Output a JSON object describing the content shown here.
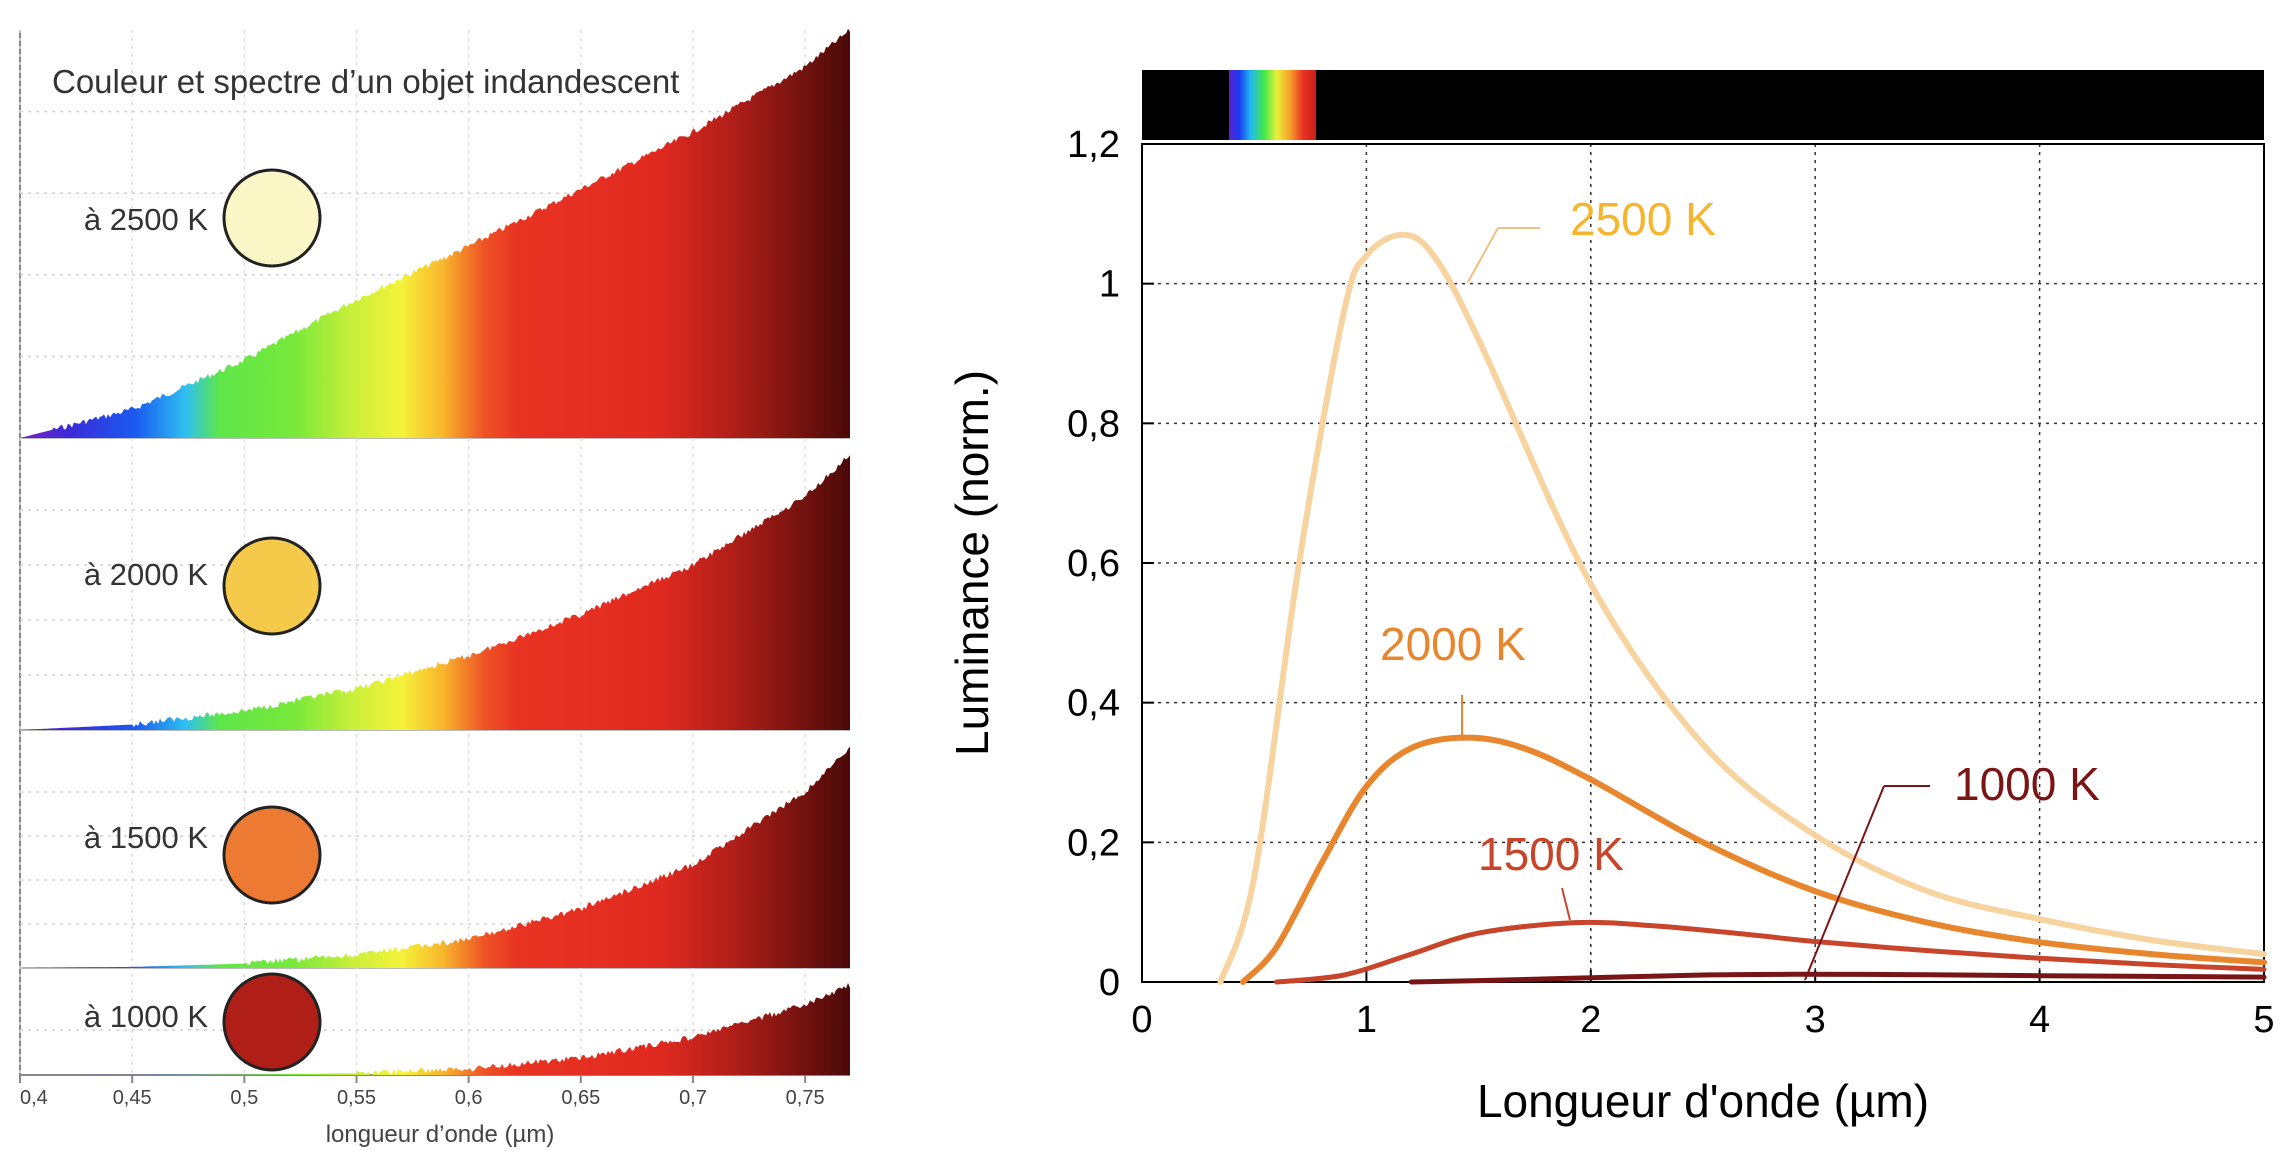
{
  "left_chart": {
    "title": "Couleur et spectre d’un objet indandescent",
    "xlabel": "longueur d’onde (µm)",
    "x_ticks": [
      "0,4",
      "0,45",
      "0,5",
      "0,55",
      "0,6",
      "0,65",
      "0,7",
      "0,75"
    ],
    "panels": [
      {
        "label": "à 2500 K",
        "color": "#fbf6c6"
      },
      {
        "label": "à 2000 K",
        "color": "#f5c94a"
      },
      {
        "label": "à 1500 K",
        "color": "#ec7a33"
      },
      {
        "label": "à 1000 K",
        "color": "#b01e18"
      }
    ]
  },
  "chart_data": [
    {
      "type": "area",
      "title": "Couleur et spectre d’un objet indandescent",
      "xlabel": "longueur d’onde (µm)",
      "ylabel": "",
      "xlim": [
        0.4,
        0.77
      ],
      "x_ticks": [
        0.4,
        0.45,
        0.5,
        0.55,
        0.6,
        0.65,
        0.7,
        0.75
      ],
      "series": [
        {
          "name": "à 2500 K",
          "x": [
            0.4,
            0.45,
            0.5,
            0.55,
            0.6,
            0.65,
            0.7,
            0.75,
            0.77
          ],
          "values": [
            0.0,
            0.07,
            0.19,
            0.34,
            0.47,
            0.61,
            0.75,
            0.91,
            1.0
          ]
        },
        {
          "name": "à 2000 K",
          "x": [
            0.4,
            0.45,
            0.5,
            0.55,
            0.6,
            0.65,
            0.7,
            0.75,
            0.77
          ],
          "values": [
            0.0,
            0.02,
            0.07,
            0.15,
            0.27,
            0.42,
            0.6,
            0.85,
            1.0
          ]
        },
        {
          "name": "à 1500 K",
          "x": [
            0.4,
            0.45,
            0.5,
            0.55,
            0.6,
            0.65,
            0.7,
            0.75,
            0.77
          ],
          "values": [
            0.0,
            0.005,
            0.02,
            0.06,
            0.13,
            0.27,
            0.47,
            0.8,
            1.0
          ]
        },
        {
          "name": "à 1000 K",
          "x": [
            0.4,
            0.45,
            0.5,
            0.55,
            0.6,
            0.65,
            0.7,
            0.75,
            0.77
          ],
          "values": [
            0.0,
            0.001,
            0.005,
            0.02,
            0.07,
            0.19,
            0.42,
            0.78,
            1.0
          ]
        }
      ]
    },
    {
      "type": "line",
      "title": "",
      "xlabel": "Longueur d'onde (µm)",
      "ylabel": "Luminance (norm.)",
      "xlim": [
        0,
        5
      ],
      "ylim": [
        0,
        1.2
      ],
      "x_ticks": [
        "0",
        "1",
        "2",
        "3",
        "4",
        "5"
      ],
      "y_ticks": [
        "0",
        "0,2",
        "0,4",
        "0,6",
        "0,8",
        "1",
        "1,2"
      ],
      "grid": true,
      "series": [
        {
          "name": "2500 K",
          "color": "#f7d49f",
          "x": [
            0.35,
            0.5,
            0.7,
            0.9,
            1.0,
            1.16,
            1.3,
            1.5,
            2.0,
            2.5,
            3.0,
            3.5,
            4.0,
            4.5,
            5.0
          ],
          "values": [
            0.0,
            0.15,
            0.6,
            0.96,
            1.04,
            1.07,
            1.04,
            0.92,
            0.57,
            0.34,
            0.21,
            0.13,
            0.09,
            0.06,
            0.04
          ]
        },
        {
          "name": "2000 K",
          "color": "#e8862e",
          "x": [
            0.45,
            0.6,
            0.8,
            1.0,
            1.2,
            1.45,
            1.7,
            2.0,
            2.5,
            3.0,
            3.5,
            4.0,
            4.5,
            5.0
          ],
          "values": [
            0.0,
            0.05,
            0.17,
            0.28,
            0.335,
            0.35,
            0.335,
            0.29,
            0.2,
            0.13,
            0.085,
            0.057,
            0.04,
            0.028
          ]
        },
        {
          "name": "1500 K",
          "color": "#c8452b",
          "x": [
            0.6,
            0.9,
            1.2,
            1.5,
            1.93,
            2.3,
            2.7,
            3.0,
            3.5,
            4.0,
            4.5,
            5.0
          ],
          "values": [
            0.0,
            0.01,
            0.04,
            0.07,
            0.085,
            0.08,
            0.068,
            0.058,
            0.045,
            0.034,
            0.025,
            0.018
          ]
        },
        {
          "name": "1000 K",
          "color": "#7a1515",
          "x": [
            1.2,
            1.5,
            2.0,
            2.5,
            2.9,
            3.5,
            4.0,
            4.5,
            5.0
          ],
          "values": [
            0.0,
            0.002,
            0.006,
            0.01,
            0.011,
            0.0105,
            0.009,
            0.008,
            0.007
          ]
        }
      ]
    }
  ],
  "right_chart": {
    "xlabel": "Longueur d'onde (µm)",
    "ylabel": "Luminance (norm.)",
    "x_ticks": [
      "0",
      "1",
      "2",
      "3",
      "4",
      "5"
    ],
    "y_ticks": [
      "0",
      "0,2",
      "0,4",
      "0,6",
      "0,8",
      "1",
      "1,2"
    ],
    "curve_labels": [
      "2500 K",
      "2000 K",
      "1500 K",
      "1000 K"
    ]
  }
}
